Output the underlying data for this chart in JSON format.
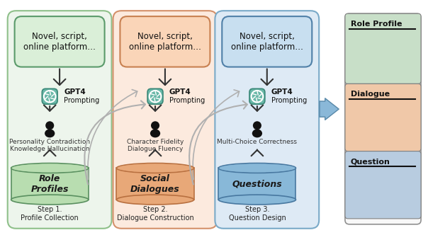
{
  "bg_color": "#ffffff",
  "col_bg_colors": [
    "#edf5ec",
    "#fceade",
    "#deeaf5"
  ],
  "col_bg_edges": [
    "#8fc08a",
    "#d4916a",
    "#7aaac8"
  ],
  "src_box_colors": [
    "#daefd8",
    "#fad5b8",
    "#c8dff0"
  ],
  "src_box_edges": [
    "#5a9a6a",
    "#c88050",
    "#5080a8"
  ],
  "gpt_box_color": "#6ab8a8",
  "gpt_box_edge": "#3a8878",
  "db_face_colors": [
    "#b8ddb0",
    "#e8a878",
    "#88b8d8"
  ],
  "db_edge_colors": [
    "#5a9060",
    "#b87040",
    "#4878a0"
  ],
  "db_labels": [
    "Role\nProfiles",
    "Social\nDialogues",
    "Questions"
  ],
  "legend_sec_colors": [
    "#c8dfc8",
    "#f0c8a8",
    "#b8cce0"
  ],
  "legend_sec_edges": [
    "#808080",
    "#808080",
    "#808080"
  ],
  "legend_labels": [
    "Role Profile",
    "Dialogue",
    "Question"
  ],
  "source_texts": [
    "Novel, script,\nonline platform…",
    "Novel, script,\nonline platform…",
    "Novel, script,\nonline platform…"
  ],
  "metric_texts": [
    "Personality Contradiction\nKnowledge Hallucination",
    "Character Fidelity\nDialogue Fluency",
    "Multi-Choice Correctness"
  ],
  "steps": [
    "Step 1.\nProfile Collection",
    "Step 2.\nDialogue Construction",
    "Step 3.\nQuestion Design"
  ],
  "arrow_dark": "#333333",
  "arrow_gray": "#b0b0b0",
  "arrow_blue": "#7090b8"
}
